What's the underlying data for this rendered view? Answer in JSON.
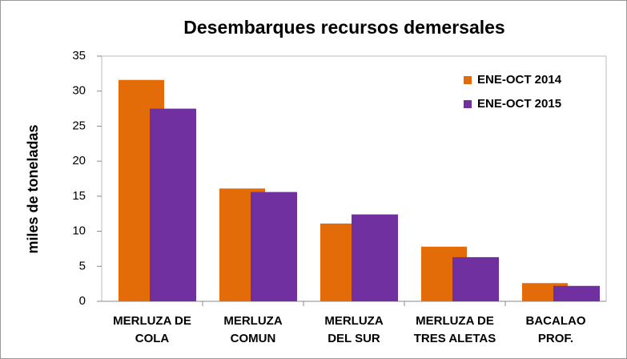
{
  "chart_data": {
    "type": "bar",
    "title": "Desembarques recursos demersales",
    "y_label": "miles de toneladas",
    "categories": [
      "MERLUZA DE\nCOLA",
      "MERLUZA\nCOMUN",
      "MERLUZA\nDEL SUR",
      "MERLUZA DE\nTRES ALETAS",
      "BACALAO\nPROF."
    ],
    "series": [
      {
        "name": "ENE-OCT 2014",
        "color": "#e36c09",
        "values": [
          31.6,
          16.1,
          11.1,
          7.8,
          2.6
        ]
      },
      {
        "name": "ENE-OCT 2015",
        "color": "#7030a0",
        "values": [
          27.5,
          15.6,
          12.4,
          6.3,
          2.2
        ]
      }
    ],
    "ylim": [
      0,
      35
    ],
    "yticks": [
      0,
      5,
      10,
      15,
      20,
      25,
      30,
      35
    ],
    "legend": "top-right"
  }
}
